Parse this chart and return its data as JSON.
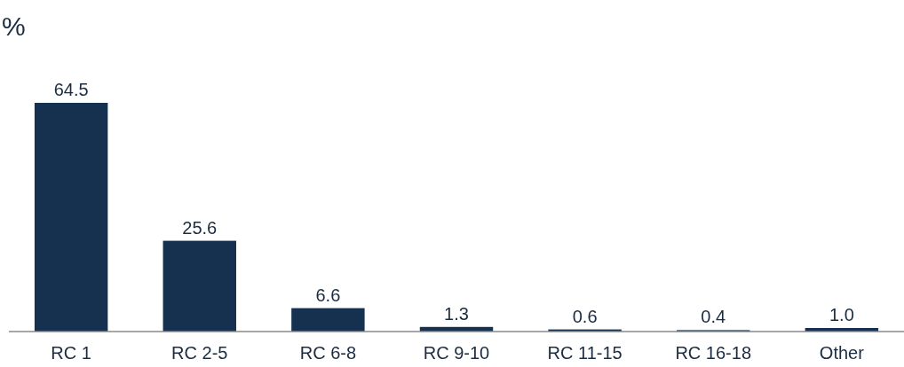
{
  "chart_data": {
    "type": "bar",
    "ylabel": "%",
    "categories": [
      "RC 1",
      "RC 2-5",
      "RC 6-8",
      "RC 9-10",
      "RC 11-15",
      "RC 16-18",
      "Other"
    ],
    "values": [
      64.5,
      25.6,
      6.6,
      1.3,
      0.6,
      0.4,
      1.0
    ],
    "value_labels": [
      "64.5",
      "25.6",
      "6.6",
      "1.3",
      "0.6",
      "0.4",
      "1.0"
    ],
    "color": "#15314f"
  }
}
